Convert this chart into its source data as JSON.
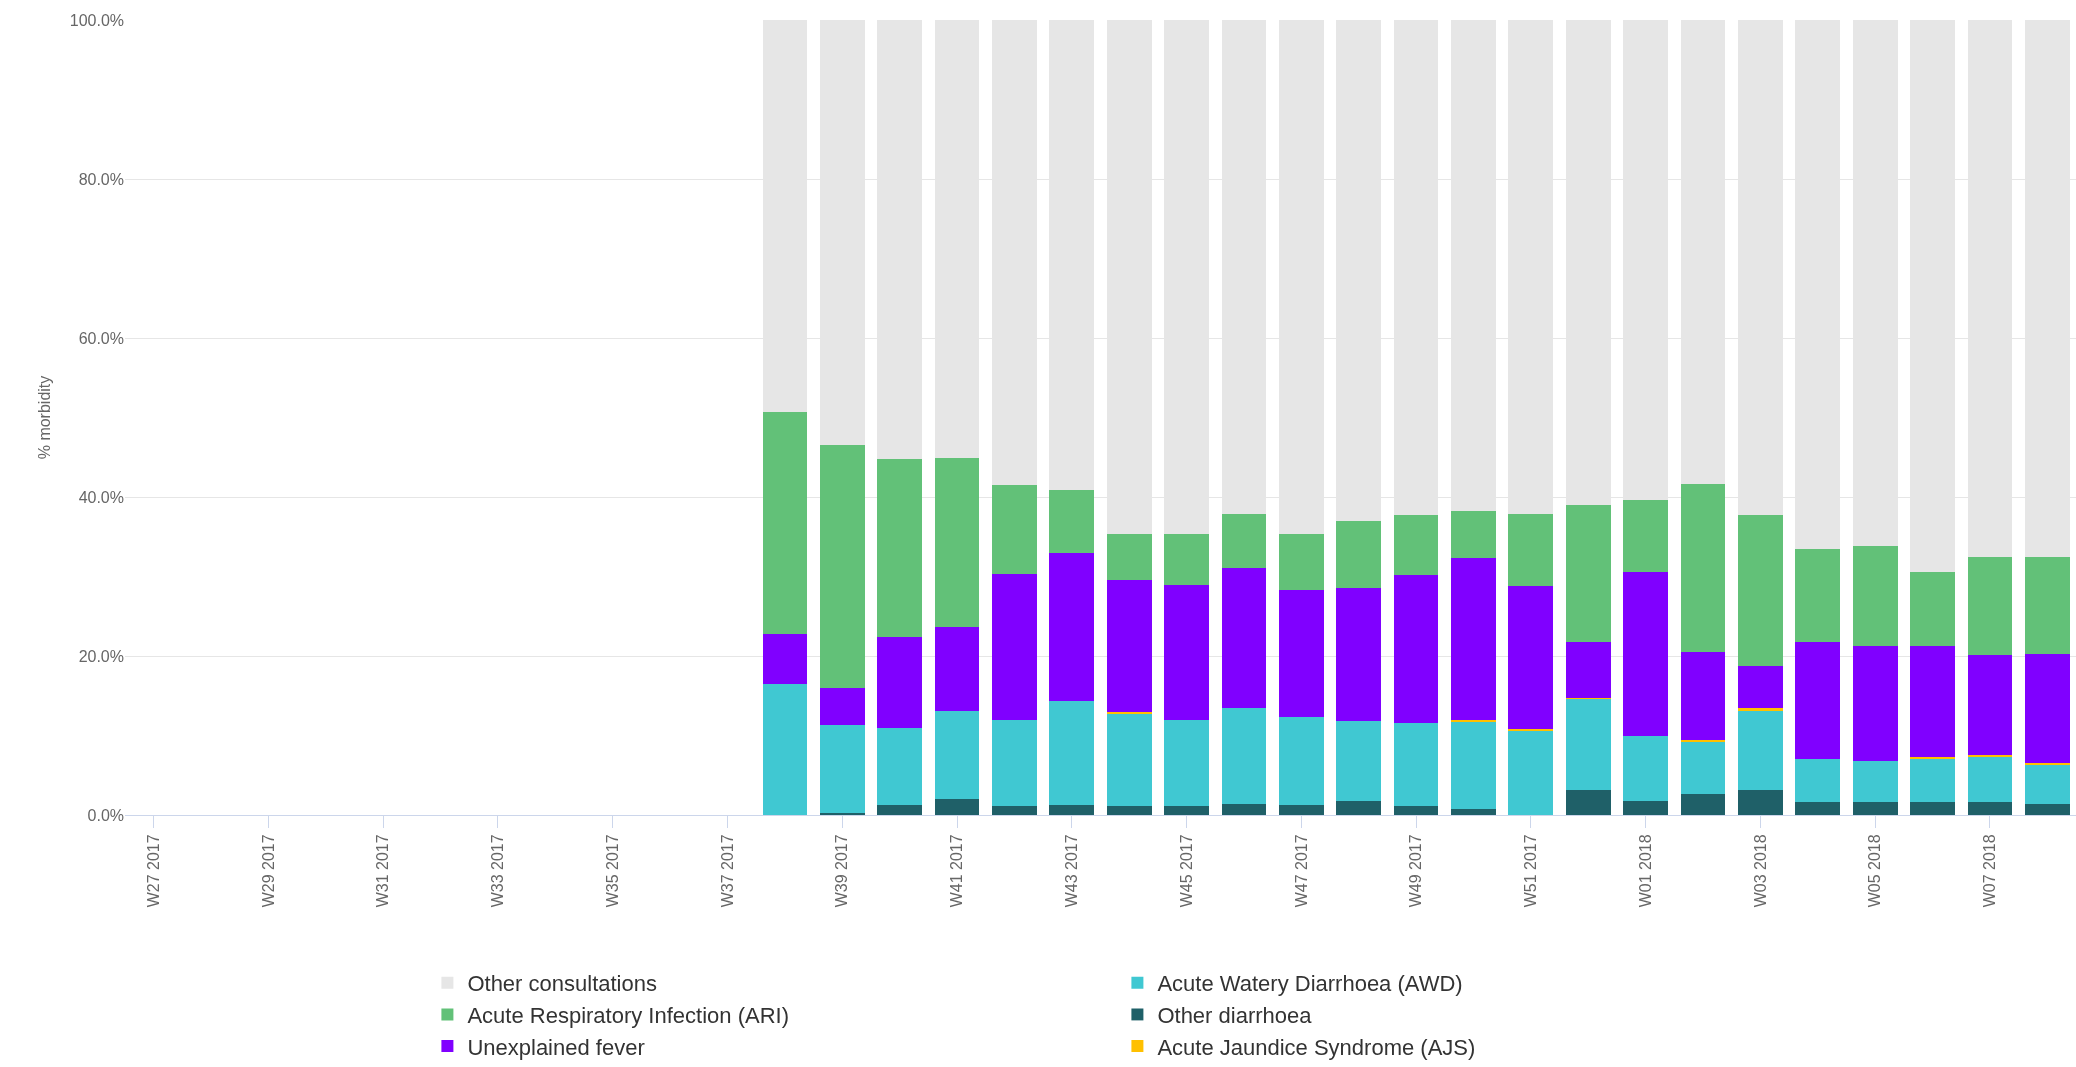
{
  "chart_data": {
    "type": "bar",
    "stacked": true,
    "ylabel": "% morbidity",
    "grid": "y",
    "legend": "bottom",
    "categories": [
      "W27 2017",
      null,
      "W29 2017",
      null,
      "W31 2017",
      null,
      "W33 2017",
      null,
      "W35 2017",
      null,
      "W37 2017",
      null,
      "W39 2017",
      null,
      "W41 2017",
      null,
      "W43 2017",
      null,
      "W45 2017",
      null,
      "W47 2017",
      null,
      "W49 2017",
      null,
      "W51 2017",
      null,
      "W01 2018",
      null,
      "W03 2018",
      null,
      "W05 2018",
      null,
      "W07 2018",
      null
    ],
    "ylim": [
      0,
      100
    ],
    "yticks": [
      {
        "value": 0,
        "label": "0.0%"
      },
      {
        "value": 20,
        "label": "20.0%"
      },
      {
        "value": 40,
        "label": "40.0%"
      },
      {
        "value": 60,
        "label": "60.0%"
      },
      {
        "value": 80,
        "label": "80.0%"
      },
      {
        "value": 100,
        "label": "100.0%"
      }
    ],
    "series": [
      {
        "name": "Other diarrhoea",
        "color": "#1f6068",
        "values": [
          null,
          null,
          null,
          null,
          null,
          null,
          null,
          null,
          null,
          null,
          null,
          0,
          0.3,
          1.3,
          2.0,
          1.1,
          1.3,
          1.1,
          1.1,
          1.4,
          1.3,
          1.8,
          1.1,
          0.8,
          0,
          3.2,
          1.7,
          2.7,
          3.2,
          1.6,
          1.6,
          1.6,
          1.6,
          1.4
        ]
      },
      {
        "name": "Acute Watery Diarrhoea (AWD)",
        "color": "#40c8d2",
        "values": [
          null,
          null,
          null,
          null,
          null,
          null,
          null,
          null,
          null,
          null,
          null,
          16.5,
          11.0,
          9.6,
          11.1,
          10.8,
          13.0,
          11.7,
          10.8,
          12.0,
          11.0,
          10.0,
          10.5,
          11.0,
          10.6,
          11.4,
          8.3,
          6.5,
          10.0,
          5.5,
          5.2,
          5.5,
          5.7,
          4.9
        ]
      },
      {
        "name": "Acute Jaundice Syndrome (AJS)",
        "color": "#ffc000",
        "values": [
          null,
          null,
          null,
          null,
          null,
          null,
          null,
          null,
          null,
          null,
          null,
          0,
          0,
          0,
          0,
          0,
          0,
          0.2,
          0,
          0,
          0,
          0,
          0,
          0.2,
          0.2,
          0.1,
          0,
          0.2,
          0.2,
          0,
          0,
          0.2,
          0.2,
          0.2
        ]
      },
      {
        "name": "Unexplained fever",
        "color": "#8000ff",
        "values": [
          null,
          null,
          null,
          null,
          null,
          null,
          null,
          null,
          null,
          null,
          null,
          6.3,
          4.7,
          11.5,
          10.6,
          18.4,
          18.7,
          16.6,
          17.0,
          17.7,
          16.0,
          16.8,
          18.6,
          20.3,
          18.0,
          7.1,
          20.6,
          11.1,
          5.3,
          14.7,
          14.4,
          13.9,
          12.6,
          13.7
        ]
      },
      {
        "name": "Acute Respiratory Infection (ARI)",
        "color": "#62c178",
        "values": [
          null,
          null,
          null,
          null,
          null,
          null,
          null,
          null,
          null,
          null,
          null,
          27.9,
          30.5,
          22.4,
          21.2,
          11.2,
          7.9,
          5.7,
          6.4,
          6.7,
          7.0,
          8.4,
          7.5,
          6.0,
          9.0,
          17.2,
          9.0,
          21.1,
          19.0,
          11.7,
          12.6,
          9.4,
          12.4,
          12.3
        ]
      },
      {
        "name": "Other consultations",
        "color": "#e6e6e6",
        "values": [
          null,
          null,
          null,
          null,
          null,
          null,
          null,
          null,
          null,
          null,
          null,
          49.3,
          53.5,
          55.2,
          55.1,
          58.5,
          59.1,
          64.7,
          64.7,
          62.2,
          64.7,
          63.0,
          62.3,
          61.7,
          62.3,
          61.0,
          60.4,
          58.4,
          62.3,
          66.5,
          66.2,
          69.5,
          67.5,
          67.5
        ]
      }
    ]
  }
}
